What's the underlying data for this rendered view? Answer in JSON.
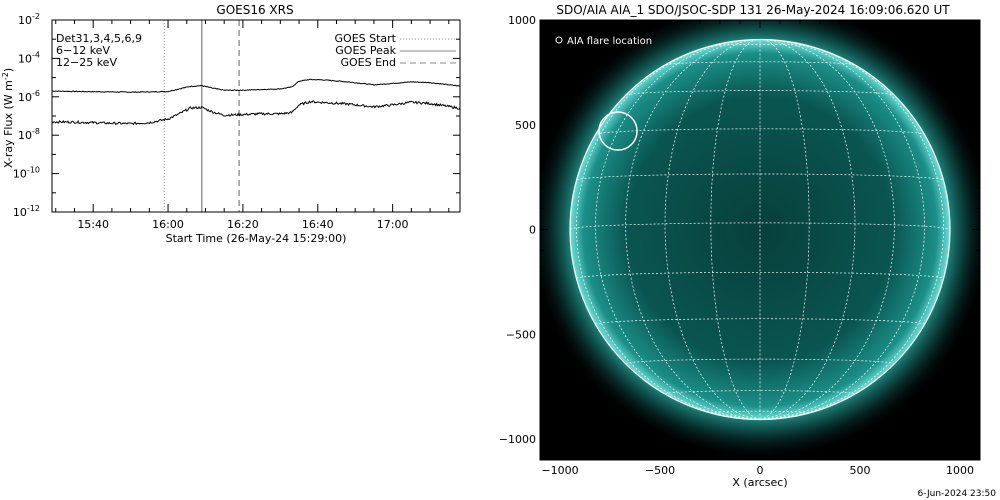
{
  "chart_data": [
    {
      "type": "line",
      "title": "GOES16 XRS",
      "xlabel": "Start Time (26-May-24 15:29:00)",
      "ylabel": "X-ray Flux (W m⁻²)",
      "ylabel_base": "X-ray Flux (W m",
      "ylabel_sup": "-2",
      "ylabel_close": ")",
      "yscale": "log",
      "xlim": [
        "15:29",
        "17:18"
      ],
      "ylim": [
        1e-12,
        0.01
      ],
      "x_ticks": [
        "15:40",
        "16:00",
        "16:20",
        "16:40",
        "17:00"
      ],
      "y_ticks": [
        {
          "value": -12,
          "base": "10",
          "exp": "-12"
        },
        {
          "value": -10,
          "base": "10",
          "exp": "-10"
        },
        {
          "value": -8,
          "base": "10",
          "exp": "-8"
        },
        {
          "value": -6,
          "base": "10",
          "exp": "-6"
        },
        {
          "value": -4,
          "base": "10",
          "exp": "-4"
        },
        {
          "value": -2,
          "base": "10",
          "exp": "-2"
        }
      ],
      "annotations": {
        "det": "Det31,3,4,5,6,9",
        "band_low": "6−12  keV",
        "band_high": "12−25  keV",
        "band_low_color": "#dd00dd",
        "band_high_color": "#22cc22"
      },
      "legend": {
        "placement": "top-right",
        "entries": [
          {
            "label": "GOES Start",
            "style": "dotted"
          },
          {
            "label": "GOES Peak",
            "style": "solid"
          },
          {
            "label": "GOES End",
            "style": "dashed"
          }
        ]
      },
      "events": {
        "start": "15:59",
        "peak": "16:09",
        "end": "16:19"
      },
      "series": [
        {
          "color": "#000000",
          "x": [
            "15:29",
            "15:35",
            "15:40",
            "15:45",
            "15:50",
            "15:55",
            "16:00",
            "16:03",
            "16:06",
            "16:09",
            "16:12",
            "16:15",
            "16:20",
            "16:25",
            "16:30",
            "16:33",
            "16:35",
            "16:38",
            "16:42",
            "16:48",
            "16:55",
            "17:00",
            "17:05",
            "17:10",
            "17:18"
          ],
          "y": [
            2e-06,
            1.9e-06,
            1.85e-06,
            1.8e-06,
            1.75e-06,
            1.8e-06,
            1.9e-06,
            2.6e-06,
            3.5e-06,
            3.8e-06,
            2.8e-06,
            2.2e-06,
            2.2e-06,
            2.4e-06,
            2.6e-06,
            3.2e-06,
            6.5e-06,
            8e-06,
            7.5e-06,
            6e-06,
            4.2e-06,
            5e-06,
            6e-06,
            5.5e-06,
            3.6e-06
          ]
        },
        {
          "color": "#000000",
          "x": [
            "15:29",
            "15:35",
            "15:40",
            "15:45",
            "15:50",
            "15:55",
            "16:00",
            "16:03",
            "16:06",
            "16:09",
            "16:12",
            "16:15",
            "16:20",
            "16:25",
            "16:30",
            "16:33",
            "16:35",
            "16:38",
            "16:42",
            "16:48",
            "16:55",
            "17:00",
            "17:05",
            "17:10",
            "17:18"
          ],
          "y": [
            5e-08,
            4.8e-08,
            4.5e-08,
            4.2e-08,
            4e-08,
            4.5e-08,
            7e-08,
            1.3e-07,
            2.6e-07,
            2.8e-07,
            1.6e-07,
            1.1e-07,
            1.2e-07,
            1.3e-07,
            1.3e-07,
            1.5e-07,
            3.8e-07,
            5.6e-07,
            5e-07,
            4.2e-07,
            3e-07,
            3.8e-07,
            5.2e-07,
            4.5e-07,
            2.5e-07
          ]
        }
      ]
    },
    {
      "type": "scatter",
      "title": "SDO/AIA AIA_1 SDO/JSOC-SDP 131 26-May-2024 16:09:06.620 UT",
      "xlabel": "X (arcsec)",
      "ylabel": "",
      "xlim": [
        -1100,
        1100
      ],
      "ylim": [
        -1100,
        1000
      ],
      "x_ticks": [
        -1000,
        -500,
        0,
        500,
        1000
      ],
      "y_ticks": [
        -1000,
        -500,
        0,
        500,
        1000
      ],
      "legend": {
        "placement": "top-left",
        "entries": [
          {
            "label": "AIA flare location"
          }
        ]
      },
      "flare_location": {
        "x": -710,
        "y": 470,
        "radius": 95
      },
      "solar_radius": 950,
      "colors": {
        "background": "#000000",
        "disk": "#0b6b66",
        "limb": "#7fe8e0",
        "grid": "#ffffff"
      }
    }
  ],
  "footer": {
    "timestamp": "6-Jun-2024 23:50"
  }
}
